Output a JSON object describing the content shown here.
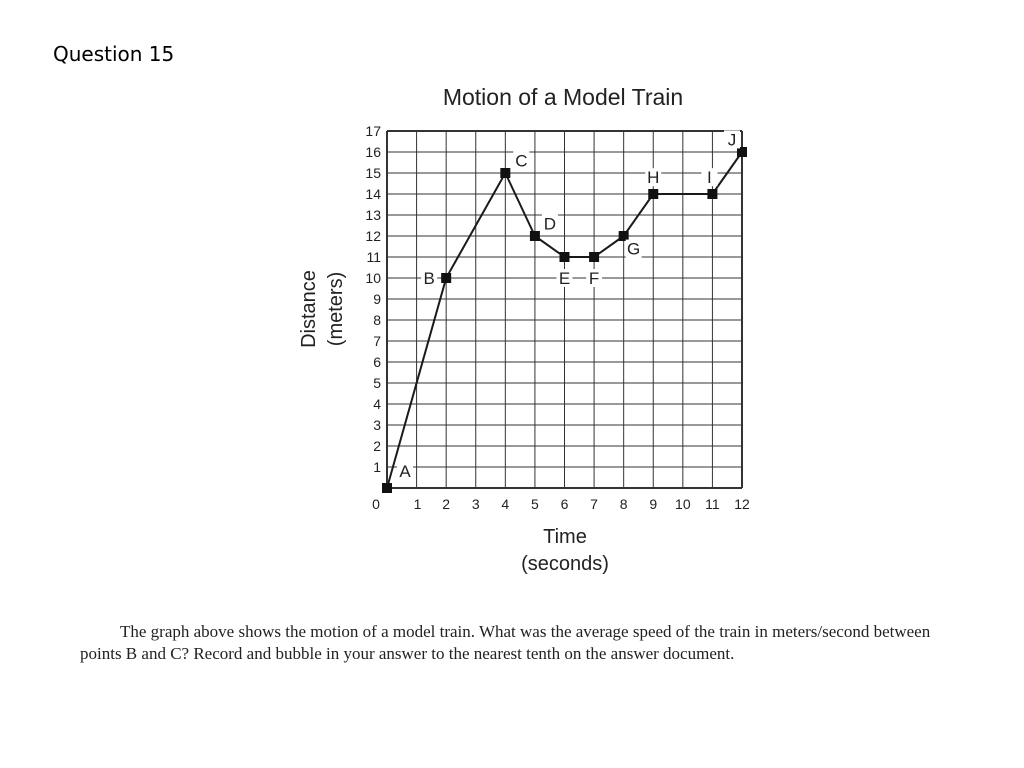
{
  "slide": {
    "heading": "Question 15"
  },
  "question": {
    "text": "The graph above shows the motion of a model train. What was the average speed of the train in meters/second between points B and C? Record and bubble in your answer to the nearest tenth on the answer document."
  },
  "chart_data": {
    "type": "line",
    "title": "Motion of a Model Train",
    "xlabel": [
      "Time",
      "(seconds)"
    ],
    "ylabel": [
      "Distance",
      "(meters)"
    ],
    "xlim": [
      0,
      12
    ],
    "ylim": [
      0,
      17
    ],
    "grid": true,
    "x_ticks": [
      "0",
      "1",
      "2",
      "3",
      "4",
      "5",
      "6",
      "7",
      "8",
      "9",
      "10",
      "11",
      "12"
    ],
    "y_ticks": [
      "1",
      "2",
      "3",
      "4",
      "5",
      "6",
      "7",
      "8",
      "9",
      "10",
      "11",
      "12",
      "13",
      "14",
      "15",
      "16",
      "17"
    ],
    "points": [
      {
        "label": "A",
        "x": 0,
        "y": 0
      },
      {
        "label": "B",
        "x": 2,
        "y": 10
      },
      {
        "label": "C",
        "x": 4,
        "y": 15
      },
      {
        "label": "D",
        "x": 5,
        "y": 12
      },
      {
        "label": "E",
        "x": 6,
        "y": 11
      },
      {
        "label": "F",
        "x": 7,
        "y": 11
      },
      {
        "label": "G",
        "x": 8,
        "y": 12
      },
      {
        "label": "H",
        "x": 9,
        "y": 14
      },
      {
        "label": "I",
        "x": 11,
        "y": 14
      },
      {
        "label": "J",
        "x": 12,
        "y": 16
      }
    ],
    "colors": {
      "grid": "#333333",
      "line": "#1a1a1a",
      "marker": "#111111"
    }
  }
}
